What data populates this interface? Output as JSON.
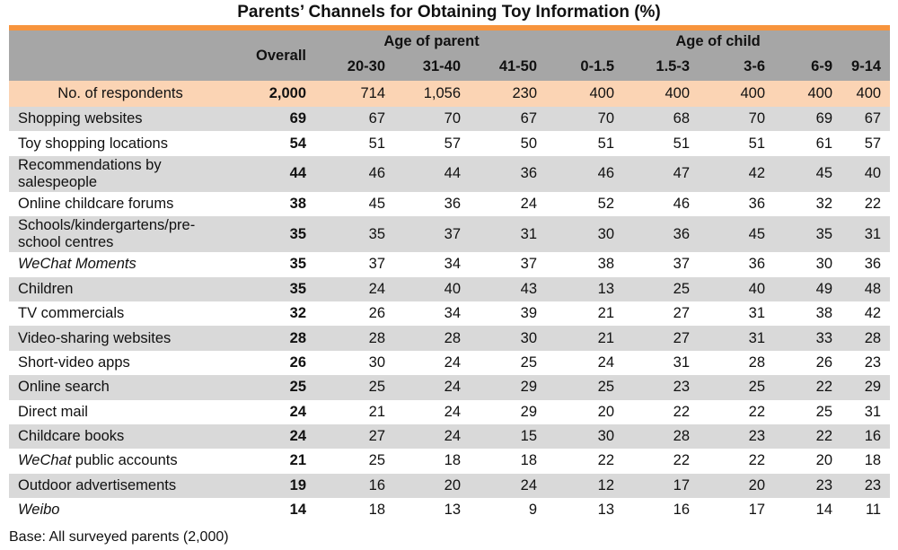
{
  "chart_data": {
    "type": "table",
    "title": "Parents’ Channels for Obtaining Toy Information (%)",
    "base_note": "Base: All surveyed parents (2,000)",
    "headers": {
      "overall": "Overall",
      "group_parent": "Age of parent",
      "group_child": "Age of child",
      "sub": [
        "20-30",
        "31-40",
        "41-50",
        "0-1.5",
        "1.5-3",
        "3-6",
        "6-9",
        "9-14"
      ]
    },
    "respondents": {
      "label": "No. of respondents",
      "overall": "2,000",
      "values": [
        "714",
        "1,056",
        "230",
        "400",
        "400",
        "400",
        "400",
        "400"
      ]
    },
    "rows": [
      {
        "label": "Shopping websites",
        "overall": "69",
        "values": [
          "67",
          "70",
          "67",
          "70",
          "68",
          "70",
          "69",
          "67"
        ]
      },
      {
        "label": "Toy shopping locations",
        "overall": "54",
        "values": [
          "51",
          "57",
          "50",
          "51",
          "51",
          "51",
          "61",
          "57"
        ]
      },
      {
        "label": "Recommendations by salespeople",
        "line1": "Recommendations by",
        "line2": "salespeople",
        "overall": "44",
        "values": [
          "46",
          "44",
          "36",
          "46",
          "47",
          "42",
          "45",
          "40"
        ]
      },
      {
        "label": "Online childcare forums",
        "overall": "38",
        "values": [
          "45",
          "36",
          "24",
          "52",
          "46",
          "36",
          "32",
          "22"
        ]
      },
      {
        "label": "Schools/kindergartens/pre-school centres",
        "line1": "Schools/kindergartens/pre-",
        "line2": "school centres",
        "overall": "35",
        "values": [
          "35",
          "37",
          "31",
          "30",
          "36",
          "45",
          "35",
          "31"
        ]
      },
      {
        "label": "WeChat Moments",
        "overall": "35",
        "values": [
          "37",
          "34",
          "37",
          "38",
          "37",
          "36",
          "30",
          "36"
        ]
      },
      {
        "label": "Children",
        "overall": "35",
        "values": [
          "24",
          "40",
          "43",
          "13",
          "25",
          "40",
          "49",
          "48"
        ]
      },
      {
        "label": "TV commercials",
        "overall": "32",
        "values": [
          "26",
          "34",
          "39",
          "21",
          "27",
          "31",
          "38",
          "42"
        ]
      },
      {
        "label": "Video-sharing websites",
        "overall": "28",
        "values": [
          "28",
          "28",
          "30",
          "21",
          "27",
          "31",
          "33",
          "28"
        ]
      },
      {
        "label": "Short-video apps",
        "overall": "26",
        "values": [
          "30",
          "24",
          "25",
          "24",
          "31",
          "28",
          "26",
          "23"
        ]
      },
      {
        "label": "Online search",
        "overall": "25",
        "values": [
          "25",
          "24",
          "29",
          "25",
          "23",
          "25",
          "22",
          "29"
        ]
      },
      {
        "label": "Direct mail",
        "overall": "24",
        "values": [
          "21",
          "24",
          "29",
          "20",
          "22",
          "22",
          "25",
          "31"
        ]
      },
      {
        "label": "Childcare books",
        "overall": "24",
        "values": [
          "27",
          "24",
          "15",
          "30",
          "28",
          "23",
          "22",
          "16"
        ]
      },
      {
        "label": "WeChat public accounts",
        "label_italic": "WeChat",
        "label_rest": " public accounts",
        "overall": "21",
        "values": [
          "25",
          "18",
          "18",
          "22",
          "22",
          "22",
          "20",
          "18"
        ]
      },
      {
        "label": "Outdoor advertisements",
        "overall": "19",
        "values": [
          "16",
          "20",
          "24",
          "12",
          "17",
          "20",
          "23",
          "23"
        ]
      },
      {
        "label": "Weibo",
        "overall": "14",
        "values": [
          "18",
          "13",
          "9",
          "13",
          "16",
          "17",
          "14",
          "11"
        ]
      }
    ],
    "colors": {
      "header": "#a6a6a6",
      "accent_bar": "#f7943d",
      "respondents_row": "#fbd4b4",
      "shaded_row": "#d9d9d9"
    }
  }
}
